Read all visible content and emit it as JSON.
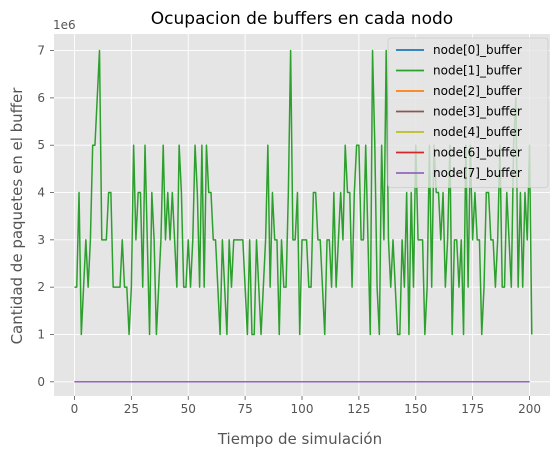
{
  "chart_data": {
    "type": "line",
    "title": "Ocupacion de buffers en cada nodo",
    "xlabel": "Tiempo de simulación",
    "ylabel": "Cantidad de paquetes en el buffer",
    "y_multiplier_label": "1e6",
    "xlim": [
      -9,
      209
    ],
    "ylim": [
      -0.3,
      7.35
    ],
    "x_ticks": [
      0,
      25,
      50,
      75,
      100,
      125,
      150,
      175,
      200
    ],
    "y_ticks": [
      0,
      1,
      2,
      3,
      4,
      5,
      6,
      7
    ],
    "grid": true,
    "legend_position": "upper right",
    "series": [
      {
        "name": "node[0]_buffer",
        "color": "#1f77b4",
        "constant": 0
      },
      {
        "name": "node[1]_buffer",
        "color": "#2ca02c",
        "x_start": 0,
        "x_step": 1,
        "values": [
          2,
          2,
          4,
          1,
          2,
          3,
          2,
          3,
          5,
          5,
          6,
          7,
          3,
          3,
          3,
          4,
          4,
          2,
          2,
          2,
          2,
          3,
          2,
          2,
          1,
          2,
          5,
          3,
          4,
          4,
          2,
          5,
          3,
          1,
          4,
          3,
          1,
          2,
          3,
          5,
          3,
          4,
          3,
          4,
          3,
          2,
          5,
          4,
          2,
          2,
          3,
          2,
          3,
          5,
          4,
          2,
          5,
          2,
          5,
          4,
          4,
          3,
          3,
          2,
          1,
          3,
          2,
          1,
          3,
          2,
          3,
          3,
          3,
          3,
          3,
          2,
          1,
          3,
          1,
          1,
          3,
          2,
          1,
          2,
          3,
          5,
          2,
          4,
          3,
          3,
          1,
          3,
          2,
          2,
          4,
          7,
          3,
          3,
          4,
          1,
          3,
          3,
          3,
          2,
          2,
          4,
          4,
          3,
          3,
          2,
          1,
          3,
          3,
          2,
          4,
          2,
          3,
          4,
          3,
          5,
          4,
          4,
          2,
          4,
          5,
          5,
          3,
          3,
          5,
          3,
          1,
          7,
          5,
          2,
          1,
          5,
          3,
          7,
          3,
          2,
          3,
          2,
          1,
          1,
          3,
          2,
          4,
          1,
          4,
          2,
          5,
          3,
          3,
          3,
          1,
          2,
          5,
          2,
          5,
          4,
          4,
          3,
          4,
          2,
          3,
          5,
          1,
          3,
          3,
          2,
          3,
          1,
          5,
          2,
          5,
          3,
          4,
          3,
          3,
          1,
          2,
          4,
          4,
          3,
          3,
          2,
          3,
          5,
          2,
          2,
          4,
          3,
          2,
          5,
          6,
          2,
          4,
          2,
          4,
          3,
          5,
          1
        ],
        "values_note_scale": 1000000
      },
      {
        "name": "node[2]_buffer",
        "color": "#ff7f0e",
        "constant": 0
      },
      {
        "name": "node[3]_buffer",
        "color": "#8c564b",
        "constant": 0
      },
      {
        "name": "node[4]_buffer",
        "color": "#bcbd22",
        "constant": 0
      },
      {
        "name": "node[6]_buffer",
        "color": "#d62728",
        "constant": 0
      },
      {
        "name": "node[7]_buffer",
        "color": "#9467bd",
        "constant": 0
      }
    ]
  }
}
